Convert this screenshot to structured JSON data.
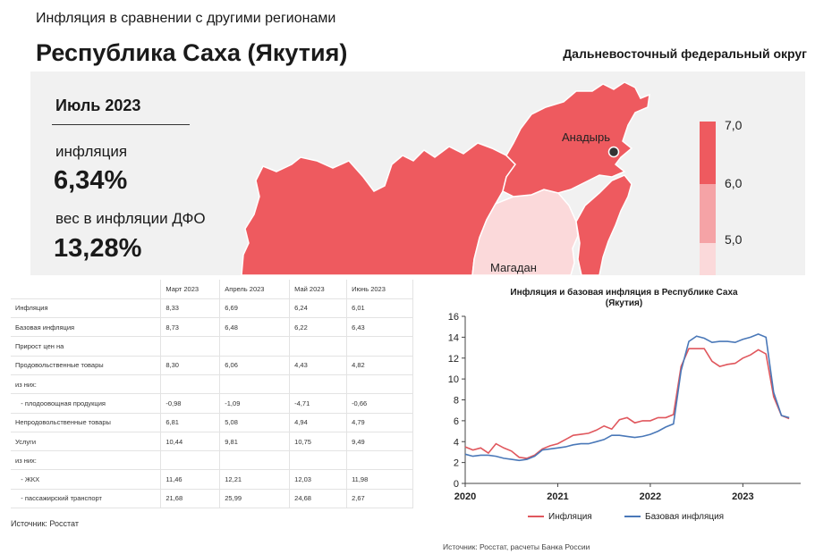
{
  "header": {
    "subtitle": "Инфляция в сравнении с другими регионами",
    "region": "Республика Саха (Якутия)",
    "district": "Дальневосточный федеральный округ"
  },
  "summary": {
    "period": "Июль 2023",
    "inflation_label": "инфляция",
    "inflation_value": "6,34%",
    "weight_label": "вес в инфляции ДФО",
    "weight_value": "13,28%"
  },
  "map": {
    "cities": [
      "Анадырь",
      "Магадан"
    ],
    "scale": [
      "7,0",
      "6,0",
      "5,0"
    ],
    "colors": {
      "high": "#ee5a5f",
      "mid": "#f5a3a6",
      "low": "#fbd9da",
      "background": "#f1f1f1"
    }
  },
  "table": {
    "headers": [
      "",
      "Март 2023",
      "Апрель 2023",
      "Май 2023",
      "Июнь  2023"
    ],
    "rows": [
      [
        "Инфляция",
        "8,33",
        "6,69",
        "6,24",
        "6,01"
      ],
      [
        "Базовая инфляция",
        "8,73",
        "6,48",
        "6,22",
        "6,43"
      ],
      [
        "Прирост цен на",
        "",
        "",
        "",
        ""
      ],
      [
        "Продовольственные товары",
        "8,30",
        "6,06",
        "4,43",
        "4,82"
      ],
      [
        "из них:",
        "",
        "",
        "",
        ""
      ],
      [
        "   - плодоовощная продукция",
        "-0,98",
        "-1,09",
        "-4,71",
        "-0,66"
      ],
      [
        "Непродовольственные товары",
        "6,81",
        "5,08",
        "4,94",
        "4,79"
      ],
      [
        "Услуги",
        "10,44",
        "9,81",
        "10,75",
        "9,49"
      ],
      [
        "из них:",
        "",
        "",
        "",
        ""
      ],
      [
        "   - ЖКХ",
        "11,46",
        "12,21",
        "12,03",
        "11,98"
      ],
      [
        "   - пассажирский транспорт",
        "21,68",
        "25,99",
        "24,68",
        "2,67"
      ]
    ],
    "source": "Источник: Росстат"
  },
  "chart_data": {
    "type": "line",
    "title": "Инфляция и базовая инфляция в Республике Саха (Якутия)",
    "title_lines": [
      "Инфляция и базовая инфляция в Республике Саха",
      "(Якутия)"
    ],
    "xlabel": "",
    "ylabel": "",
    "ylim": [
      0,
      16
    ],
    "yticks": [
      0,
      2,
      4,
      6,
      8,
      10,
      12,
      14,
      16
    ],
    "xlim": [
      2020,
      2023.625
    ],
    "xticks": [
      2020,
      2021,
      2022,
      2023
    ],
    "grid": false,
    "legend_position": "bottom",
    "series": [
      {
        "name": "Инфляция",
        "color": "#e0575d",
        "x": [
          2020.0,
          2020.083,
          2020.167,
          2020.25,
          2020.333,
          2020.417,
          2020.5,
          2020.583,
          2020.667,
          2020.75,
          2020.833,
          2020.917,
          2021.0,
          2021.083,
          2021.167,
          2021.25,
          2021.333,
          2021.417,
          2021.5,
          2021.583,
          2021.667,
          2021.75,
          2021.833,
          2021.917,
          2022.0,
          2022.083,
          2022.167,
          2022.25,
          2022.333,
          2022.417,
          2022.5,
          2022.583,
          2022.667,
          2022.75,
          2022.833,
          2022.917,
          2023.0,
          2023.083,
          2023.167,
          2023.25,
          2023.333,
          2023.417,
          2023.5
        ],
        "values": [
          3.5,
          3.2,
          3.4,
          2.9,
          3.8,
          3.4,
          3.1,
          2.5,
          2.4,
          2.7,
          3.3,
          3.6,
          3.8,
          4.2,
          4.6,
          4.7,
          4.8,
          5.1,
          5.5,
          5.2,
          6.1,
          6.3,
          5.8,
          6.0,
          6.0,
          6.3,
          6.3,
          6.6,
          11.2,
          12.9,
          12.9,
          12.9,
          11.7,
          11.2,
          11.4,
          11.5,
          12.0,
          12.3,
          12.8,
          12.4,
          8.3,
          6.5,
          6.2
        ]
      },
      {
        "name": "Базовая инфляция",
        "color": "#4a78b8",
        "x": [
          2020.0,
          2020.083,
          2020.167,
          2020.25,
          2020.333,
          2020.417,
          2020.5,
          2020.583,
          2020.667,
          2020.75,
          2020.833,
          2020.917,
          2021.0,
          2021.083,
          2021.167,
          2021.25,
          2021.333,
          2021.417,
          2021.5,
          2021.583,
          2021.667,
          2021.75,
          2021.833,
          2021.917,
          2022.0,
          2022.083,
          2022.167,
          2022.25,
          2022.333,
          2022.417,
          2022.5,
          2022.583,
          2022.667,
          2022.75,
          2022.833,
          2022.917,
          2023.0,
          2023.083,
          2023.167,
          2023.25,
          2023.333,
          2023.417,
          2023.5
        ],
        "values": [
          2.8,
          2.6,
          2.7,
          2.7,
          2.6,
          2.4,
          2.3,
          2.2,
          2.3,
          2.6,
          3.2,
          3.3,
          3.4,
          3.5,
          3.7,
          3.8,
          3.8,
          4.0,
          4.2,
          4.6,
          4.6,
          4.5,
          4.4,
          4.5,
          4.7,
          5.0,
          5.4,
          5.7,
          10.8,
          13.6,
          14.1,
          13.9,
          13.5,
          13.6,
          13.6,
          13.5,
          13.8,
          14.0,
          14.3,
          14.0,
          8.7,
          6.5,
          6.3
        ]
      }
    ],
    "source": "Источник: Росстат, расчеты Банка России"
  }
}
